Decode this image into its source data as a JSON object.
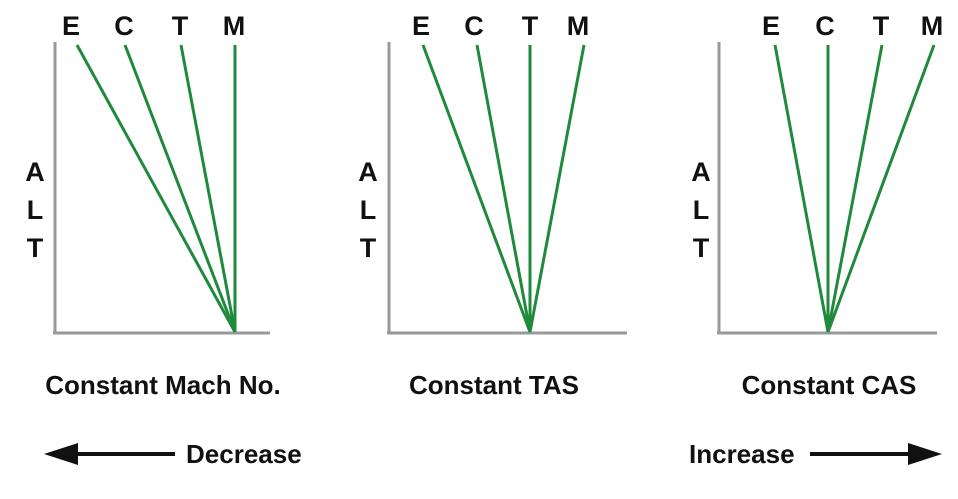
{
  "panels": [
    {
      "title": "Constant Mach No.",
      "line_labels": [
        "E",
        "C",
        "T",
        "M"
      ],
      "y_label_letters": [
        "A",
        "L",
        "T"
      ]
    },
    {
      "title": "Constant TAS",
      "line_labels": [
        "E",
        "C",
        "T",
        "M"
      ],
      "y_label_letters": [
        "A",
        "L",
        "T"
      ]
    },
    {
      "title": "Constant CAS",
      "line_labels": [
        "E",
        "C",
        "T",
        "M"
      ],
      "y_label_letters": [
        "A",
        "L",
        "T"
      ]
    }
  ],
  "arrows": {
    "left_label": "Decrease",
    "right_label": "Increase"
  },
  "colors": {
    "line": "#1f8a3c",
    "axis": "#999999",
    "text": "#111111"
  }
}
